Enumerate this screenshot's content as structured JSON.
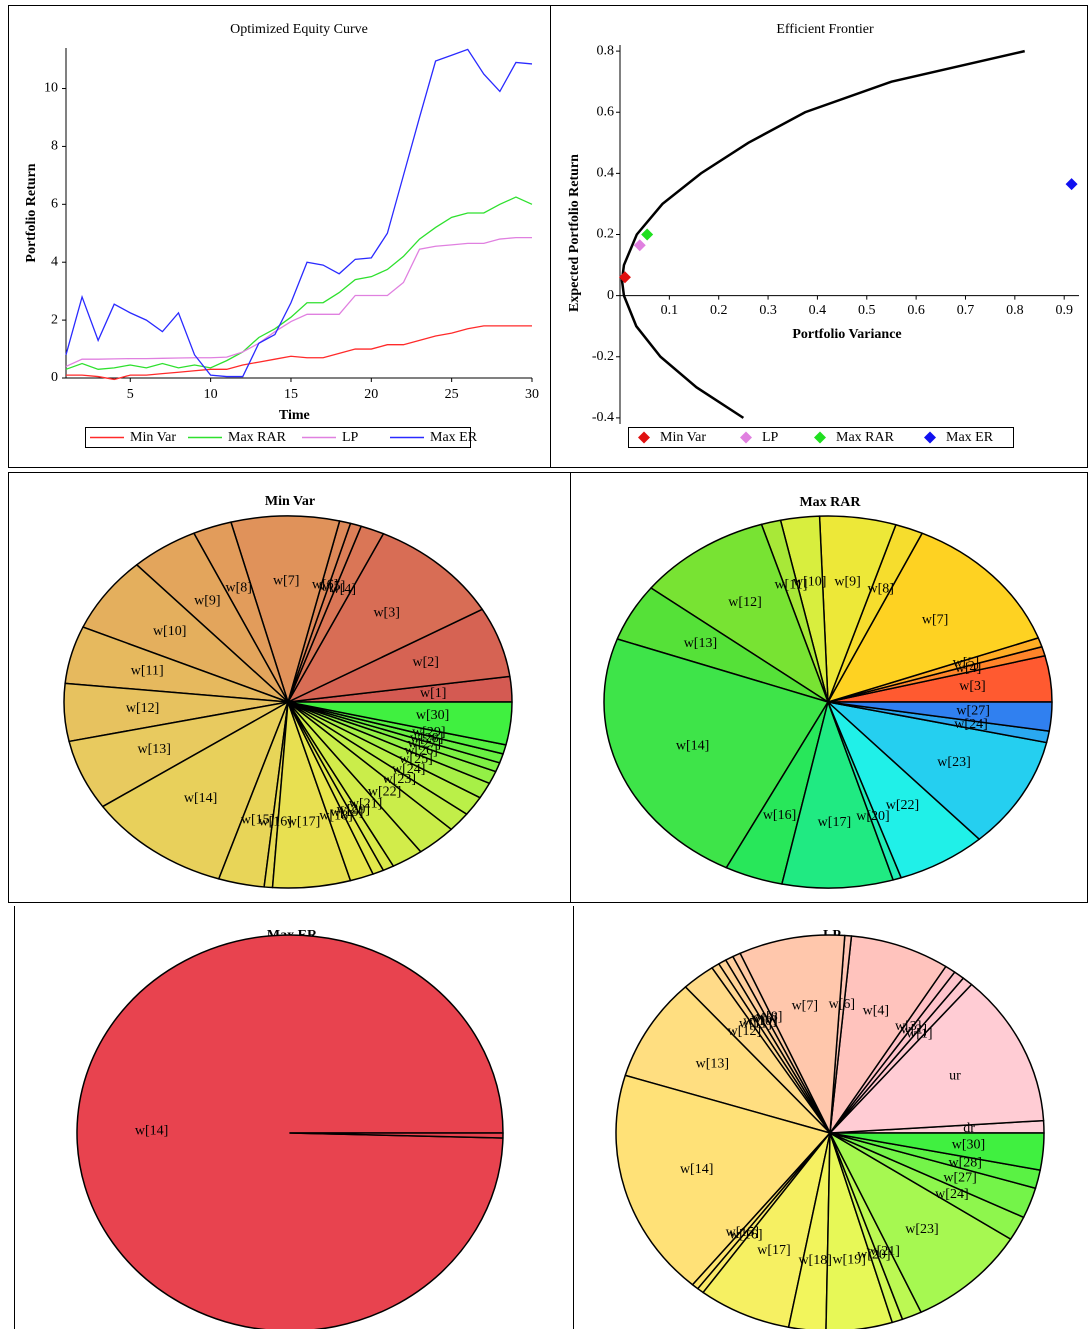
{
  "chart_data": [
    {
      "type": "line",
      "title": "Optimized Equity Curve",
      "xlabel": "Time",
      "ylabel": "Portfolio Return",
      "x": [
        1,
        2,
        3,
        4,
        5,
        6,
        7,
        8,
        9,
        10,
        11,
        12,
        13,
        14,
        15,
        16,
        17,
        18,
        19,
        20,
        21,
        22,
        23,
        24,
        25,
        26,
        27,
        28,
        29,
        30
      ],
      "xlim": [
        1,
        30
      ],
      "xticks": [
        5,
        10,
        15,
        20,
        25,
        30
      ],
      "ylim": [
        0,
        11.4
      ],
      "yticks": [
        0,
        2,
        4,
        6,
        8,
        10
      ],
      "series": [
        {
          "name": "Min Var",
          "color": "#ff2a2a",
          "values": [
            0.1,
            0.1,
            0.05,
            -0.05,
            0.1,
            0.1,
            0.15,
            0.2,
            0.25,
            0.3,
            0.3,
            0.45,
            0.55,
            0.65,
            0.75,
            0.7,
            0.7,
            0.85,
            1.0,
            1.0,
            1.15,
            1.15,
            1.3,
            1.45,
            1.55,
            1.7,
            1.8,
            1.8,
            1.8,
            1.8
          ]
        },
        {
          "name": "Max RAR",
          "color": "#2ee02e",
          "values": [
            0.3,
            0.5,
            0.3,
            0.35,
            0.45,
            0.35,
            0.5,
            0.35,
            0.45,
            0.35,
            0.6,
            0.9,
            1.4,
            1.7,
            2.1,
            2.6,
            2.6,
            2.95,
            3.4,
            3.5,
            3.75,
            4.2,
            4.8,
            5.2,
            5.55,
            5.7,
            5.7,
            6.0,
            6.25,
            6.0
          ]
        },
        {
          "name": "LP",
          "color": "#e080e0",
          "values": [
            0.4,
            0.65,
            0.65,
            0.66,
            0.67,
            0.67,
            0.68,
            0.69,
            0.7,
            0.7,
            0.72,
            0.9,
            1.2,
            1.6,
            1.95,
            2.2,
            2.2,
            2.2,
            2.85,
            2.85,
            2.85,
            3.3,
            4.45,
            4.55,
            4.6,
            4.65,
            4.65,
            4.8,
            4.85,
            4.85
          ]
        },
        {
          "name": "Max ER",
          "color": "#2a2aff",
          "values": [
            0.8,
            2.8,
            1.3,
            2.55,
            2.25,
            2.0,
            1.6,
            2.25,
            0.8,
            0.1,
            0.05,
            0.05,
            1.2,
            1.5,
            2.6,
            4.0,
            3.9,
            3.6,
            4.1,
            4.15,
            5.0,
            7.0,
            9.0,
            10.95,
            11.15,
            11.35,
            10.5,
            9.9,
            10.9,
            10.85
          ]
        }
      ]
    },
    {
      "type": "scatter",
      "title": "Efficient Frontier",
      "xlabel": "Portfolio Variance",
      "ylabel": "Expected Portfolio Return",
      "xlim": [
        0,
        0.93
      ],
      "xticks": [
        0.1,
        0.2,
        0.3,
        0.4,
        0.5,
        0.6,
        0.7,
        0.8,
        0.9
      ],
      "ylim": [
        -0.42,
        0.82
      ],
      "yticks": [
        -0.4,
        -0.2,
        0,
        0.2,
        0.4,
        0.6,
        0.8
      ],
      "curve": {
        "color": "#000000",
        "x": [
          0.25,
          0.155,
          0.082,
          0.033,
          0.008,
          0.004,
          0.008,
          0.034,
          0.086,
          0.164,
          0.26,
          0.375,
          0.55,
          0.82
        ],
        "y": [
          -0.4,
          -0.3,
          -0.2,
          -0.1,
          0,
          0.05,
          0.1,
          0.2,
          0.3,
          0.4,
          0.5,
          0.6,
          0.7,
          0.8
        ]
      },
      "series": [
        {
          "name": "Min Var",
          "color": "#e01010",
          "x": [
            0.01
          ],
          "y": [
            0.06
          ]
        },
        {
          "name": "LP",
          "color": "#e080e0",
          "x": [
            0.04
          ],
          "y": [
            0.165
          ]
        },
        {
          "name": "Max RAR",
          "color": "#20e020",
          "x": [
            0.055
          ],
          "y": [
            0.2
          ]
        },
        {
          "name": "Max ER",
          "color": "#1010f0",
          "x": [
            0.915
          ],
          "y": [
            0.365
          ]
        }
      ]
    },
    {
      "type": "pie",
      "title": "Min Var",
      "categories": [
        "w[1]",
        "w[2]",
        "w[3]",
        "w[4]",
        "w[5]",
        "w[6]",
        "w[7]",
        "w[8]",
        "w[9]",
        "w[10]",
        "w[11]",
        "w[12]",
        "w[13]",
        "w[14]",
        "w[15]",
        "w[16]",
        "w[17]",
        "w[18]",
        "w[19]",
        "w[20]",
        "w[21]",
        "w[22]",
        "w[23]",
        "w[24]",
        "w[25]",
        "w[26]",
        "w[27]",
        "w[28]",
        "w[29]",
        "w[30]"
      ],
      "values": [
        2.2,
        6.1,
        9.7,
        1.7,
        0.8,
        0.8,
        7.8,
        2.8,
        4.9,
        6.6,
        5.0,
        5.0,
        6.1,
        10.5,
        3.3,
        0.6,
        5.6,
        1.7,
        0.8,
        0.8,
        2.3,
        2.9,
        1.7,
        1.7,
        1.4,
        1.1,
        0.8,
        0.8,
        0.8,
        3.7
      ],
      "color_stops": [
        "#d45a52",
        "#e0905a",
        "#e8c860",
        "#e8e84c",
        "#b8f048",
        "#40f040"
      ]
    },
    {
      "type": "pie",
      "title": "Max RAR",
      "categories": [
        "w[3]",
        "w[4]",
        "w[5]",
        "w[7]",
        "w[8]",
        "w[9]",
        "w[10]",
        "w[11]",
        "w[12]",
        "w[13]",
        "w[14]",
        "w[16]",
        "w[17]",
        "w[20]",
        "w[22]",
        "w[23]",
        "w[24]",
        "w[27]"
      ],
      "values": [
        4.0,
        0.8,
        0.8,
        12.5,
        2.0,
        5.5,
        2.8,
        1.4,
        9.7,
        5.0,
        23.0,
        4.2,
        8.0,
        0.6,
        6.5,
        9.7,
        1.0,
        2.5
      ],
      "color_stops": [
        "#ff5a30",
        "#ffd020",
        "#e8f040",
        "#60e030",
        "#20e860",
        "#20f0f0",
        "#3080f0"
      ]
    },
    {
      "type": "pie",
      "title": "Max ER",
      "categories": [
        "w[14]",
        null
      ],
      "values": [
        99.6,
        0.4
      ],
      "color_stops": [
        "#e8434f",
        "#e8434f"
      ]
    },
    {
      "type": "pie",
      "title": "LP",
      "categories": [
        "dr",
        "ur",
        "w[1]",
        "w[2]",
        "w[3]",
        "w[4]",
        "w[6]",
        "w[7]",
        "w[8]",
        "w[9]",
        "w[10]",
        "w[11]",
        "w[12]",
        "w[13]",
        "w[14]",
        "w[15]",
        "w[16]",
        "w[17]",
        "w[18]",
        "w[19]",
        "w[20]",
        "w[21]",
        "w[23]",
        "w[24]",
        "w[27]",
        "w[28]",
        "w[30]"
      ],
      "values": [
        1.0,
        12.5,
        0.8,
        0.8,
        0.8,
        7.5,
        0.5,
        8.0,
        0.6,
        0.6,
        0.6,
        0.6,
        2.5,
        8.5,
        18.6,
        0.5,
        0.5,
        7.0,
        2.8,
        5.0,
        0.8,
        1.5,
        9.0,
        2.0,
        2.5,
        1.5,
        3.0
      ],
      "color_stops": [
        "#ffd0d8",
        "#ffc0c8",
        "#ffc8a8",
        "#ffd890",
        "#ffe470",
        "#f0f858",
        "#a0f850",
        "#40f040"
      ]
    }
  ]
}
